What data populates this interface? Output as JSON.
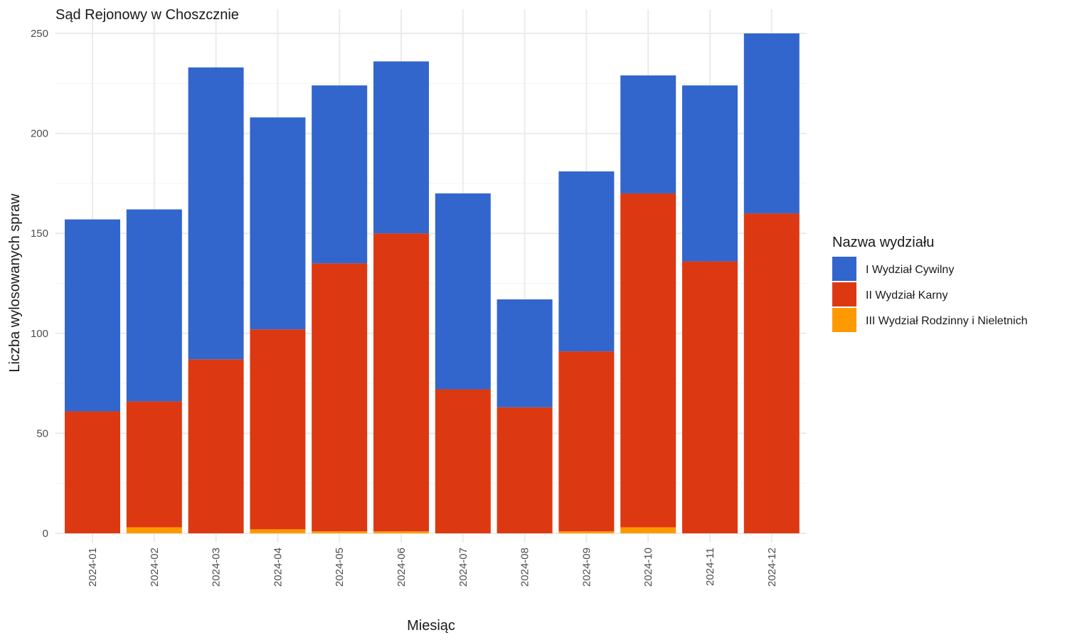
{
  "chart_data": {
    "type": "bar",
    "stacked": true,
    "title": "Sąd Rejonowy w Choszcznie",
    "xlabel": "Miesiąc",
    "ylabel": "Liczba wylosowanych spraw",
    "ylim": [
      0,
      250
    ],
    "yticks": [
      0,
      50,
      100,
      150,
      200,
      250
    ],
    "categories": [
      "2024-01",
      "2024-02",
      "2024-03",
      "2024-04",
      "2024-05",
      "2024-06",
      "2024-07",
      "2024-08",
      "2024-09",
      "2024-10",
      "2024-11",
      "2024-12"
    ],
    "legend_title": "Nazwa wydziału",
    "legend_position": "right",
    "grid": true,
    "series": [
      {
        "name": "III Wydział Rodzinny i Nieletnich",
        "color": "#FF9900",
        "values": [
          0,
          3,
          0,
          2,
          1,
          1,
          0,
          0,
          1,
          3,
          0,
          0
        ]
      },
      {
        "name": "II Wydział Karny",
        "color": "#DC3912",
        "values": [
          61,
          63,
          87,
          100,
          134,
          149,
          72,
          63,
          90,
          167,
          136,
          160
        ]
      },
      {
        "name": "I Wydział Cywilny",
        "color": "#3366CC",
        "values": [
          96,
          96,
          146,
          106,
          89,
          86,
          98,
          54,
          90,
          59,
          88,
          90
        ]
      }
    ],
    "legend_order": [
      "I Wydział Cywilny",
      "II Wydział Karny",
      "III Wydział Rodzinny i Nieletnich"
    ]
  }
}
